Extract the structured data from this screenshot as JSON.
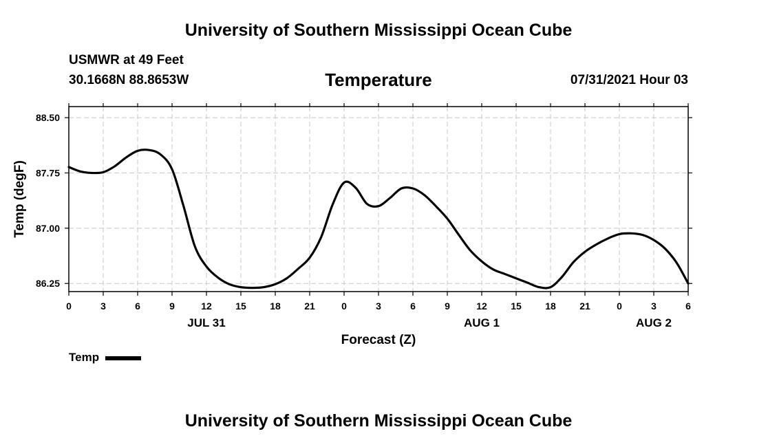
{
  "header": {
    "title": "University of Southern Mississippi Ocean Cube",
    "station": "USMWR at 49 Feet",
    "coords": "30.1668N  88.8653W",
    "variable": "Temperature",
    "datetime": "07/31/2021 Hour 03"
  },
  "footer": {
    "title": "University of Southern Mississippi Ocean Cube"
  },
  "legend": {
    "label": "Temp"
  },
  "chart_data": {
    "type": "line",
    "title": "Temperature",
    "xlabel": "Forecast (Z)",
    "ylabel": "Temp (degF)",
    "x_unit": "hours since Jul 31 00Z",
    "xlim": [
      0,
      54
    ],
    "ylim": [
      86.14,
      88.65
    ],
    "x_ticks": [
      0,
      3,
      6,
      9,
      12,
      15,
      18,
      21,
      24,
      27,
      30,
      33,
      36,
      39,
      42,
      45,
      48,
      51,
      54
    ],
    "x_tick_labels": [
      "0",
      "3",
      "6",
      "9",
      "12",
      "15",
      "18",
      "21",
      "0",
      "3",
      "6",
      "9",
      "12",
      "15",
      "18",
      "21",
      "0",
      "3",
      "6"
    ],
    "y_ticks": [
      86.25,
      87.0,
      87.75,
      88.5
    ],
    "y_tick_labels": [
      "86.25",
      "87.00",
      "87.75",
      "88.50"
    ],
    "date_labels": [
      {
        "x": 12,
        "label": "JUL 31"
      },
      {
        "x": 36,
        "label": "AUG 1"
      },
      {
        "x": 51,
        "label": "AUG 2"
      }
    ],
    "grid": true,
    "series": [
      {
        "name": "Temp",
        "color": "#000000",
        "x": [
          0,
          1,
          2,
          3,
          4,
          5,
          6,
          7,
          8,
          9,
          10,
          11,
          12,
          13,
          14,
          15,
          16,
          17,
          18,
          19,
          20,
          21,
          22,
          23,
          24,
          25,
          26,
          27,
          28,
          29,
          30,
          31,
          32,
          33,
          34,
          35,
          36,
          37,
          38,
          39,
          40,
          41,
          42,
          43,
          44,
          45,
          46,
          47,
          48,
          49,
          50,
          51,
          52,
          53,
          54
        ],
        "y": [
          87.83,
          87.77,
          87.75,
          87.76,
          87.84,
          87.96,
          88.05,
          88.06,
          88.0,
          87.8,
          87.3,
          86.75,
          86.48,
          86.33,
          86.24,
          86.2,
          86.19,
          86.2,
          86.24,
          86.32,
          86.45,
          86.6,
          86.88,
          87.32,
          87.62,
          87.55,
          87.33,
          87.3,
          87.41,
          87.54,
          87.54,
          87.45,
          87.3,
          87.13,
          86.91,
          86.7,
          86.55,
          86.44,
          86.38,
          86.32,
          86.26,
          86.2,
          86.2,
          86.34,
          86.54,
          86.68,
          86.78,
          86.86,
          86.92,
          86.93,
          86.91,
          86.84,
          86.72,
          86.53,
          86.25
        ]
      }
    ]
  }
}
